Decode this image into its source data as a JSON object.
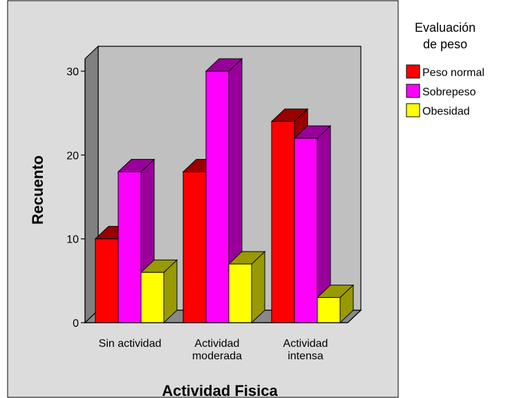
{
  "chart_data": {
    "type": "bar",
    "style": "3d-clustered",
    "categories": [
      [
        "Sin actividad"
      ],
      [
        "Actividad",
        "moderada"
      ],
      [
        "Actividad",
        "intensa"
      ]
    ],
    "series": [
      {
        "name": "Peso normal",
        "values": [
          10,
          18,
          24
        ],
        "color": "#ff0000",
        "dark": "#990000"
      },
      {
        "name": "Sobrepeso",
        "values": [
          18,
          30,
          22
        ],
        "color": "#ff00ff",
        "dark": "#990099"
      },
      {
        "name": "Obesidad",
        "values": [
          6,
          7,
          3
        ],
        "color": "#ffff00",
        "dark": "#999900"
      }
    ],
    "xlabel": "Actividad Fisica",
    "ylabel": "Recuento",
    "ylim": [
      0,
      30
    ],
    "yticks": [
      0,
      10,
      20,
      30
    ],
    "legend": {
      "title": [
        "Evaluación",
        "de peso"
      ],
      "placement": "right"
    },
    "colors": {
      "plot_background": "#dcdcdc",
      "floor": "#888888",
      "back_wall": "#c0c0c0",
      "side_wall": "#808080"
    }
  }
}
